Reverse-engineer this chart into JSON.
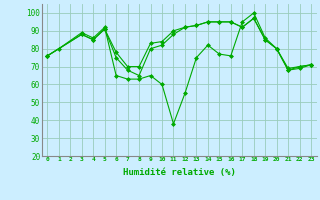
{
  "title": "",
  "xlabel": "Humidité relative (%)",
  "ylabel": "",
  "background_color": "#cceeff",
  "grid_color": "#99ccbb",
  "line_color": "#00aa00",
  "xlim": [
    -0.5,
    23.5
  ],
  "ylim": [
    20,
    105
  ],
  "yticks": [
    20,
    30,
    40,
    50,
    60,
    70,
    80,
    90,
    100
  ],
  "xticks": [
    0,
    1,
    2,
    3,
    4,
    5,
    6,
    7,
    8,
    9,
    10,
    11,
    12,
    13,
    14,
    15,
    16,
    17,
    18,
    19,
    20,
    21,
    22,
    23
  ],
  "series": [
    {
      "x": [
        0,
        1,
        3,
        4,
        5,
        6,
        7,
        8,
        9,
        10,
        11,
        12,
        13,
        14,
        15,
        16,
        17,
        18,
        19,
        20,
        21,
        22,
        23
      ],
      "y": [
        76,
        80,
        89,
        86,
        92,
        65,
        63,
        63,
        65,
        60,
        38,
        55,
        75,
        82,
        77,
        76,
        95,
        100,
        86,
        80,
        68,
        70,
        71
      ]
    },
    {
      "x": [
        0,
        3,
        4,
        5,
        6,
        7,
        8,
        9,
        10,
        11,
        12,
        13,
        14,
        15,
        16,
        17,
        18,
        19,
        20,
        21,
        22,
        23
      ],
      "y": [
        76,
        88,
        85,
        91,
        78,
        70,
        70,
        83,
        84,
        90,
        92,
        93,
        95,
        95,
        95,
        92,
        97,
        85,
        80,
        69,
        70,
        71
      ]
    },
    {
      "x": [
        0,
        3,
        4,
        5,
        6,
        7,
        8,
        9,
        10,
        11,
        12,
        13,
        14,
        15,
        16,
        17,
        18,
        19,
        20,
        21,
        22,
        23
      ],
      "y": [
        76,
        88,
        85,
        91,
        75,
        68,
        65,
        80,
        82,
        88,
        92,
        93,
        95,
        95,
        95,
        92,
        97,
        85,
        80,
        68,
        69,
        71
      ]
    }
  ]
}
